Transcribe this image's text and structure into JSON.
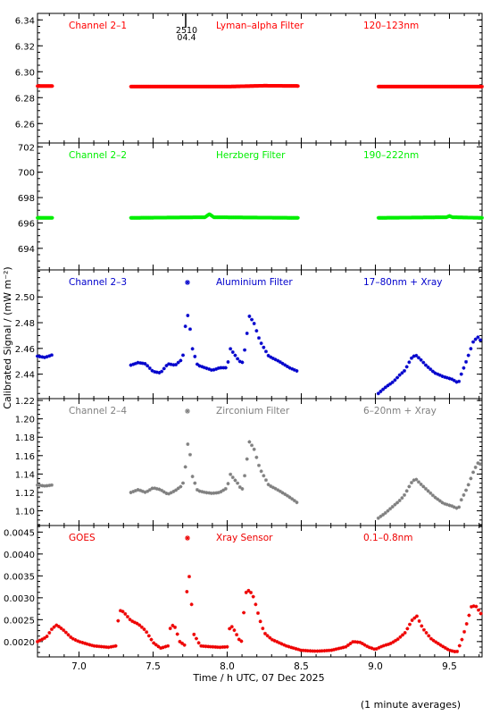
{
  "chart_data": {
    "type": "scatter",
    "shared_x": {
      "label": "Time / h UTC, 07 Dec 2025",
      "range": [
        6.72,
        9.72
      ],
      "ticks": [
        7.0,
        7.5,
        8.0,
        8.5,
        9.0,
        9.5
      ],
      "tick_labels": [
        "7.0",
        "7.5",
        "8.0",
        "8.5",
        "9.0",
        "9.5"
      ]
    },
    "ylabel": "Calibrated Signal / (mW m⁻²)",
    "footnote": "(1 minute averages)",
    "panels": [
      {
        "id": "ch21",
        "label_left": "Channel 2–1",
        "label_mid": "Lyman–alpha Filter",
        "label_right": "120–123nm",
        "color": "#ff0000",
        "ylim": [
          6.245,
          6.345
        ],
        "yticks": [
          6.26,
          6.28,
          6.3,
          6.32,
          6.34
        ],
        "ytick_labels": [
          "6.26",
          "6.28",
          "6.30",
          "6.32",
          "6.34"
        ],
        "marker": {
          "x": 7.72,
          "label_top": "2510",
          "label_bottom": "04.4"
        },
        "segments": [
          {
            "x0": 6.72,
            "x1": 6.82,
            "points": [
              [
                6.72,
                6.289
              ],
              [
                6.82,
                6.289
              ]
            ]
          },
          {
            "x0": 7.35,
            "x1": 8.48,
            "points": [
              [
                7.35,
                6.2885
              ],
              [
                8.0,
                6.2885
              ],
              [
                8.25,
                6.2892
              ],
              [
                8.48,
                6.289
              ]
            ]
          },
          {
            "x0": 9.02,
            "x1": 9.72,
            "points": [
              [
                9.02,
                6.2885
              ],
              [
                9.72,
                6.2885
              ]
            ]
          }
        ]
      },
      {
        "id": "ch22",
        "label_left": "Channel 2–2",
        "label_mid": "Herzberg Filter",
        "label_right": "190–222nm",
        "color": "#00ee00",
        "ylim": [
          692.3,
          702.3
        ],
        "yticks": [
          694,
          696,
          698,
          700,
          702
        ],
        "ytick_labels": [
          "694",
          "696",
          "698",
          "700",
          "702"
        ],
        "segments": [
          {
            "x0": 6.72,
            "x1": 6.82,
            "points": [
              [
                6.72,
                696.4
              ],
              [
                6.82,
                696.4
              ]
            ]
          },
          {
            "x0": 7.35,
            "x1": 8.48,
            "points": [
              [
                7.35,
                696.4
              ],
              [
                7.85,
                696.45
              ],
              [
                7.88,
                696.7
              ],
              [
                7.91,
                696.45
              ],
              [
                8.48,
                696.4
              ]
            ]
          },
          {
            "x0": 9.02,
            "x1": 9.72,
            "points": [
              [
                9.02,
                696.4
              ],
              [
                9.48,
                696.45
              ],
              [
                9.5,
                696.55
              ],
              [
                9.52,
                696.45
              ],
              [
                9.72,
                696.4
              ]
            ]
          }
        ]
      },
      {
        "id": "ch23",
        "label_left": "Channel 2–3",
        "label_mid": "Aluminium Filter",
        "label_right": "17–80nm + Xray",
        "color": "#0000cc",
        "legend_star": true,
        "ylim": [
          2.421,
          2.521
        ],
        "yticks": [
          2.44,
          2.46,
          2.48,
          2.5
        ],
        "ytick_labels": [
          "2.44",
          "2.46",
          "2.48",
          "2.50"
        ],
        "segments": [
          {
            "x0": 6.72,
            "x1": 6.82,
            "points": [
              [
                6.72,
                2.454
              ],
              [
                6.77,
                2.453
              ],
              [
                6.82,
                2.455
              ]
            ]
          },
          {
            "x0": 7.35,
            "x1": 8.48,
            "points": [
              [
                7.35,
                2.447
              ],
              [
                7.4,
                2.449
              ],
              [
                7.45,
                2.448
              ],
              [
                7.5,
                2.442
              ],
              [
                7.55,
                2.441
              ],
              [
                7.6,
                2.448
              ],
              [
                7.65,
                2.447
              ],
              [
                7.7,
                2.452
              ],
              [
                7.72,
                2.48
              ],
              [
                7.74,
                2.488
              ],
              [
                7.76,
                2.462
              ],
              [
                7.8,
                2.447
              ],
              [
                7.85,
                2.445
              ],
              [
                7.9,
                2.443
              ],
              [
                7.95,
                2.445
              ],
              [
                8.0,
                2.445
              ],
              [
                8.02,
                2.46
              ],
              [
                8.07,
                2.452
              ],
              [
                8.1,
                2.448
              ],
              [
                8.12,
                2.46
              ],
              [
                8.15,
                2.485
              ],
              [
                8.18,
                2.48
              ],
              [
                8.22,
                2.466
              ],
              [
                8.28,
                2.454
              ],
              [
                8.35,
                2.45
              ],
              [
                8.42,
                2.445
              ],
              [
                8.48,
                2.442
              ]
            ]
          },
          {
            "x0": 9.02,
            "x1": 9.72,
            "points": [
              [
                9.02,
                2.425
              ],
              [
                9.07,
                2.43
              ],
              [
                9.12,
                2.434
              ],
              [
                9.17,
                2.44
              ],
              [
                9.2,
                2.443
              ],
              [
                9.24,
                2.452
              ],
              [
                9.27,
                2.455
              ],
              [
                9.3,
                2.452
              ],
              [
                9.34,
                2.447
              ],
              [
                9.4,
                2.441
              ],
              [
                9.46,
                2.438
              ],
              [
                9.52,
                2.436
              ],
              [
                9.56,
                2.433
              ],
              [
                9.58,
                2.44
              ],
              [
                9.62,
                2.452
              ],
              [
                9.66,
                2.465
              ],
              [
                9.69,
                2.469
              ],
              [
                9.72,
                2.465
              ]
            ]
          }
        ]
      },
      {
        "id": "ch24",
        "label_left": "Channel 2–4",
        "label_mid": "Zirconium Filter",
        "label_right": "6–20nm + Xray",
        "color": "#808080",
        "legend_star": true,
        "ylim": [
          1.084,
          1.222
        ],
        "yticks": [
          1.1,
          1.12,
          1.14,
          1.16,
          1.18,
          1.2,
          1.22
        ],
        "ytick_labels": [
          "1.10",
          "1.12",
          "1.14",
          "1.16",
          "1.18",
          "1.20",
          "1.22"
        ],
        "segments": [
          {
            "x0": 6.72,
            "x1": 6.82,
            "points": [
              [
                6.72,
                1.128
              ],
              [
                6.77,
                1.127
              ],
              [
                6.82,
                1.128
              ]
            ]
          },
          {
            "x0": 7.35,
            "x1": 8.48,
            "points": [
              [
                7.35,
                1.12
              ],
              [
                7.4,
                1.123
              ],
              [
                7.45,
                1.12
              ],
              [
                7.5,
                1.125
              ],
              [
                7.55,
                1.123
              ],
              [
                7.6,
                1.118
              ],
              [
                7.65,
                1.122
              ],
              [
                7.7,
                1.128
              ],
              [
                7.72,
                1.15
              ],
              [
                7.74,
                1.182
              ],
              [
                7.76,
                1.14
              ],
              [
                7.8,
                1.122
              ],
              [
                7.85,
                1.12
              ],
              [
                7.9,
                1.119
              ],
              [
                7.95,
                1.12
              ],
              [
                8.0,
                1.125
              ],
              [
                8.02,
                1.14
              ],
              [
                8.07,
                1.13
              ],
              [
                8.1,
                1.122
              ],
              [
                8.12,
                1.14
              ],
              [
                8.15,
                1.175
              ],
              [
                8.18,
                1.168
              ],
              [
                8.22,
                1.146
              ],
              [
                8.28,
                1.128
              ],
              [
                8.35,
                1.122
              ],
              [
                8.42,
                1.115
              ],
              [
                8.48,
                1.108
              ]
            ]
          },
          {
            "x0": 9.02,
            "x1": 9.72,
            "points": [
              [
                9.02,
                1.092
              ],
              [
                9.07,
                1.098
              ],
              [
                9.12,
                1.105
              ],
              [
                9.17,
                1.112
              ],
              [
                9.2,
                1.118
              ],
              [
                9.24,
                1.13
              ],
              [
                9.27,
                1.135
              ],
              [
                9.3,
                1.13
              ],
              [
                9.34,
                1.124
              ],
              [
                9.4,
                1.115
              ],
              [
                9.46,
                1.108
              ],
              [
                9.52,
                1.105
              ],
              [
                9.56,
                1.102
              ],
              [
                9.58,
                1.112
              ],
              [
                9.62,
                1.125
              ],
              [
                9.66,
                1.142
              ],
              [
                9.69,
                1.152
              ],
              [
                9.72,
                1.15
              ]
            ]
          }
        ]
      },
      {
        "id": "goes",
        "label_left": "GOES",
        "label_mid": "Xray Sensor",
        "label_right": "0.1–0.8nm",
        "color": "#ee0000",
        "legend_star": true,
        "ylim": [
          0.00165,
          0.00465
        ],
        "yticks": [
          0.002,
          0.0025,
          0.003,
          0.0035,
          0.004,
          0.0045
        ],
        "ytick_labels": [
          "0.0020",
          "0.0025",
          "0.0030",
          "0.0035",
          "0.0040",
          "0.0045"
        ],
        "segments": [
          {
            "x0": 6.72,
            "x1": 9.72,
            "points": [
              [
                6.72,
                0.002
              ],
              [
                6.78,
                0.0021
              ],
              [
                6.82,
                0.0023
              ],
              [
                6.85,
                0.00238
              ],
              [
                6.9,
                0.00225
              ],
              [
                6.95,
                0.00208
              ],
              [
                7.0,
                0.002
              ],
              [
                7.1,
                0.0019
              ],
              [
                7.2,
                0.00187
              ],
              [
                7.25,
                0.0019
              ],
              [
                7.27,
                0.00272
              ],
              [
                7.3,
                0.00268
              ],
              [
                7.35,
                0.00248
              ],
              [
                7.4,
                0.0024
              ],
              [
                7.45,
                0.00225
              ],
              [
                7.5,
                0.00198
              ],
              [
                7.55,
                0.00185
              ],
              [
                7.6,
                0.0019
              ],
              [
                7.62,
                0.0024
              ],
              [
                7.65,
                0.00232
              ],
              [
                7.68,
                0.002
              ],
              [
                7.72,
                0.0019
              ],
              [
                7.73,
                0.00345
              ],
              [
                7.75,
                0.0035
              ],
              [
                7.77,
                0.0022
              ],
              [
                7.82,
                0.0019
              ],
              [
                7.9,
                0.00188
              ],
              [
                7.95,
                0.00187
              ],
              [
                8.0,
                0.00188
              ],
              [
                8.02,
                0.0024
              ],
              [
                8.05,
                0.00225
              ],
              [
                8.08,
                0.00205
              ],
              [
                8.1,
                0.002
              ],
              [
                8.12,
                0.0031
              ],
              [
                8.15,
                0.00318
              ],
              [
                8.18,
                0.003
              ],
              [
                8.22,
                0.0025
              ],
              [
                8.25,
                0.0022
              ],
              [
                8.3,
                0.00205
              ],
              [
                8.4,
                0.0019
              ],
              [
                8.5,
                0.0018
              ],
              [
                8.6,
                0.00178
              ],
              [
                8.7,
                0.0018
              ],
              [
                8.8,
                0.00188
              ],
              [
                8.85,
                0.002
              ],
              [
                8.9,
                0.00198
              ],
              [
                8.95,
                0.00188
              ],
              [
                9.0,
                0.00182
              ],
              [
                9.05,
                0.0019
              ],
              [
                9.1,
                0.00195
              ],
              [
                9.15,
                0.00205
              ],
              [
                9.2,
                0.0022
              ],
              [
                9.25,
                0.0025
              ],
              [
                9.28,
                0.00258
              ],
              [
                9.32,
                0.0023
              ],
              [
                9.38,
                0.00205
              ],
              [
                9.45,
                0.0019
              ],
              [
                9.5,
                0.0018
              ],
              [
                9.55,
                0.00176
              ],
              [
                9.58,
                0.002
              ],
              [
                9.62,
                0.00245
              ],
              [
                9.65,
                0.00282
              ],
              [
                9.68,
                0.0028
              ],
              [
                9.72,
                0.0026
              ]
            ]
          }
        ]
      }
    ]
  }
}
